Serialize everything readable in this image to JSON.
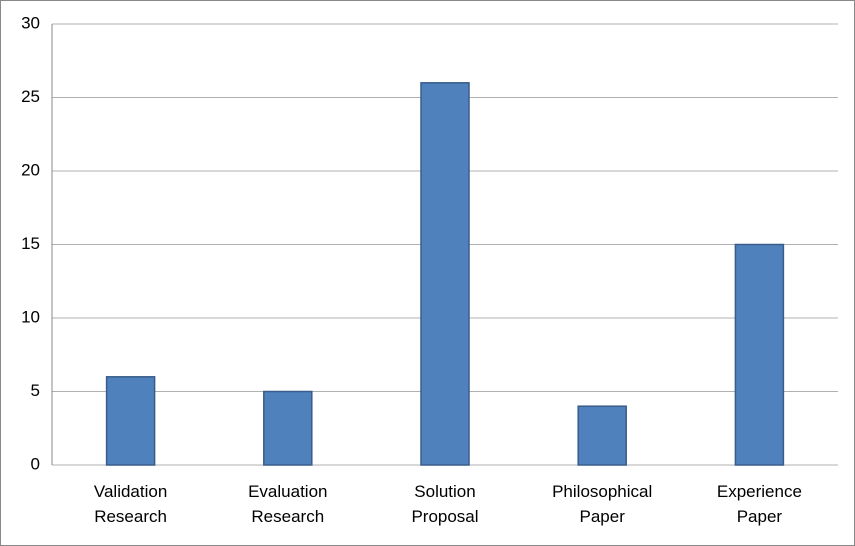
{
  "chart_data": {
    "type": "bar",
    "categories": [
      "Validation Research",
      "Evaluation Research",
      "Solution Proposal",
      "Philosophical Paper",
      "Experience Paper"
    ],
    "values": [
      6,
      5,
      26,
      4,
      15
    ],
    "color": "#4f81bd",
    "ylim": [
      0,
      30
    ],
    "yticks": [
      0,
      5,
      10,
      15,
      20,
      25,
      30
    ],
    "grid": true
  }
}
